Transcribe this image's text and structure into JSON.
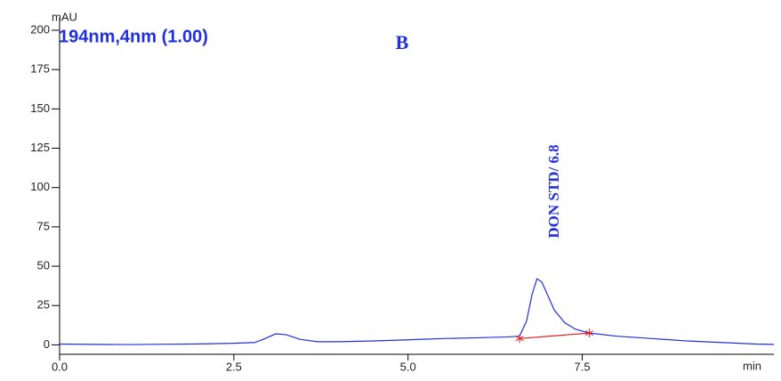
{
  "chart_data": {
    "type": "line",
    "title": "194nm,4nm (1.00)",
    "panel_label": "B",
    "annotation": "DON STD/ 6.8",
    "x_label": "min",
    "y_label": "mAU",
    "x": [
      0,
      0.5,
      1.0,
      1.5,
      2.0,
      2.5,
      2.8,
      2.95,
      3.1,
      3.25,
      3.45,
      3.7,
      4.0,
      4.5,
      5.0,
      5.5,
      6.0,
      6.4,
      6.6,
      6.7,
      6.78,
      6.85,
      6.92,
      7.0,
      7.1,
      7.25,
      7.4,
      7.6,
      8.0,
      8.5,
      9.0,
      9.5,
      10.0,
      10.25
    ],
    "series": [
      {
        "color": "#2030e0",
        "values": [
          0.5,
          0.3,
          0.2,
          0.4,
          0.6,
          1.0,
          1.5,
          4,
          7,
          6.5,
          3.5,
          2,
          2,
          2.5,
          3.2,
          4,
          4.5,
          5,
          5.5,
          15,
          32,
          42,
          40,
          32,
          22,
          14,
          10,
          7.5,
          5.5,
          4,
          2.5,
          1.5,
          0.5,
          0.3
        ]
      }
    ],
    "integration_baseline": {
      "x": [
        6.6,
        7.6
      ],
      "values": [
        4,
        7.5
      ],
      "color": "#e02020"
    },
    "xlim": [
      0,
      10.25
    ],
    "ylim": [
      -6,
      200
    ],
    "xticks": [
      {
        "value": 0,
        "label": "0.0"
      },
      2.5,
      {
        "value": 5,
        "label": "5.0"
      },
      7.5
    ],
    "yticks": [
      0,
      25,
      50,
      75,
      100,
      125,
      150,
      175,
      200
    ]
  }
}
